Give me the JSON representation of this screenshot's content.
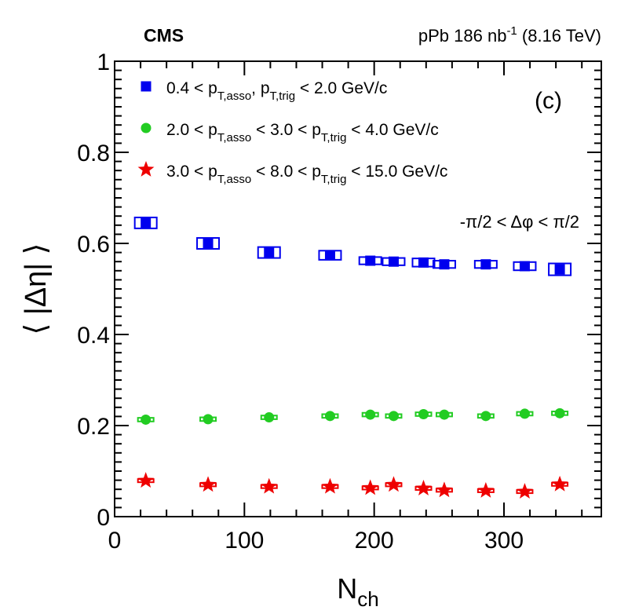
{
  "header": {
    "experiment": "CMS",
    "collision": "pPb 186 nb",
    "lumi_exp": "-1",
    "energy": " (8.16 TeV)"
  },
  "panel_label": "(c)",
  "phi_range": "-π/2 < Δφ < π/2",
  "chart_data": {
    "type": "scatter",
    "title": "",
    "xlabel": "N",
    "xlabel_sub": "ch",
    "ylabel": "⟨ |Δη| ⟩",
    "xlim": [
      0,
      375
    ],
    "ylim": [
      0,
      1
    ],
    "xticks": [
      {
        "value": 0,
        "label": "0"
      },
      {
        "value": 100,
        "label": "100"
      },
      {
        "value": 200,
        "label": "200"
      },
      {
        "value": 300,
        "label": "300"
      }
    ],
    "yticks": [
      {
        "value": 0,
        "label": "0"
      },
      {
        "value": 0.2,
        "label": "0.2"
      },
      {
        "value": 0.4,
        "label": "0.4"
      },
      {
        "value": 0.6,
        "label": "0.6"
      },
      {
        "value": 0.8,
        "label": "0.8"
      },
      {
        "value": 1,
        "label": "1"
      }
    ],
    "series": [
      {
        "name": "0.4 < pT,asso, pT,trig < 2.0 GeV/c",
        "legend": [
          {
            "t": "0.4 < p"
          },
          {
            "t": "T,asso",
            "sub": true
          },
          {
            "t": ", p"
          },
          {
            "t": "T,trig",
            "sub": true
          },
          {
            "t": " < 2.0 GeV/c"
          }
        ],
        "marker": "square",
        "color": "#0000ee",
        "x": [
          24,
          72,
          119,
          166,
          197,
          215,
          238,
          254,
          286,
          316,
          343
        ],
        "y": [
          0.645,
          0.6,
          0.58,
          0.574,
          0.562,
          0.56,
          0.558,
          0.554,
          0.554,
          0.55,
          0.543
        ],
        "syst": [
          0.012,
          0.012,
          0.012,
          0.01,
          0.008,
          0.008,
          0.009,
          0.008,
          0.008,
          0.009,
          0.013
        ]
      },
      {
        "name": "2.0 < pT,asso < 3.0 < pT,trig < 4.0 GeV/c",
        "legend": [
          {
            "t": "2.0 < p"
          },
          {
            "t": "T,asso",
            "sub": true
          },
          {
            "t": " < 3.0 < p"
          },
          {
            "t": "T,trig",
            "sub": true
          },
          {
            "t": " < 4.0 GeV/c"
          }
        ],
        "marker": "circle",
        "color": "#22cc22",
        "x": [
          24,
          72,
          119,
          166,
          197,
          215,
          238,
          254,
          286,
          316,
          343
        ],
        "y": [
          0.213,
          0.214,
          0.218,
          0.221,
          0.224,
          0.221,
          0.225,
          0.224,
          0.221,
          0.226,
          0.227
        ],
        "syst": [
          0.004,
          0.004,
          0.004,
          0.004,
          0.004,
          0.004,
          0.004,
          0.004,
          0.004,
          0.004,
          0.004
        ]
      },
      {
        "name": "3.0 < pT,asso < 8.0 < pT,trig < 15.0 GeV/c",
        "legend": [
          {
            "t": "3.0 < p"
          },
          {
            "t": "T,asso",
            "sub": true
          },
          {
            "t": " < 8.0 < p"
          },
          {
            "t": "T,trig",
            "sub": true
          },
          {
            "t": " < 15.0 GeV/c"
          }
        ],
        "marker": "star",
        "color": "#ee0000",
        "x": [
          24,
          72,
          119,
          166,
          197,
          215,
          238,
          254,
          286,
          316,
          343
        ],
        "y": [
          0.079,
          0.07,
          0.066,
          0.066,
          0.063,
          0.07,
          0.062,
          0.058,
          0.057,
          0.055,
          0.071
        ],
        "syst": [
          0.003,
          0.003,
          0.003,
          0.003,
          0.003,
          0.003,
          0.003,
          0.003,
          0.003,
          0.003,
          0.003
        ]
      }
    ]
  }
}
